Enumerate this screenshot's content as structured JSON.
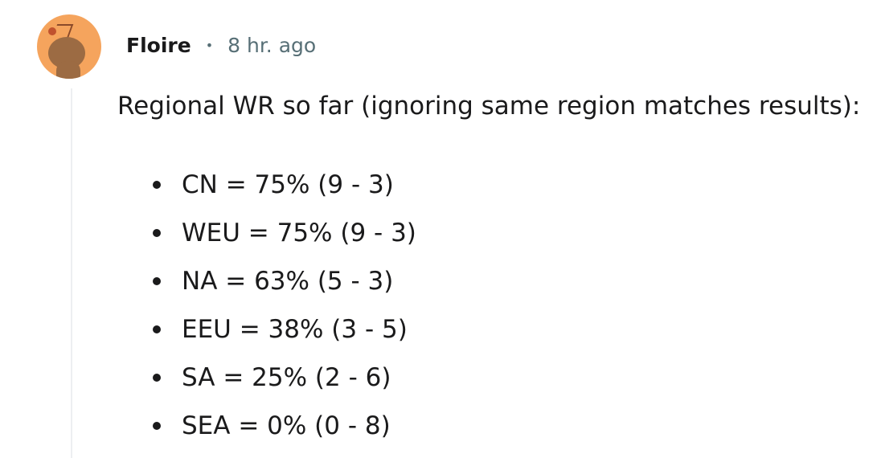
{
  "comment": {
    "author": "Floire",
    "separator": "•",
    "timestamp": "8 hr. ago",
    "avatar_icon": "reddit-snoo-avatar",
    "avatar_color": "#f5a45d",
    "intro": "Regional WR so far (ignoring same region matches results):",
    "items": [
      "CN = 75% (9 - 3)",
      "WEU = 75% (9 - 3)",
      "NA = 63% (5 - 3)",
      "EEU = 38% (3 - 5)",
      "SA = 25% (2 - 6)",
      "SEA = 0% (0 - 8)"
    ]
  }
}
